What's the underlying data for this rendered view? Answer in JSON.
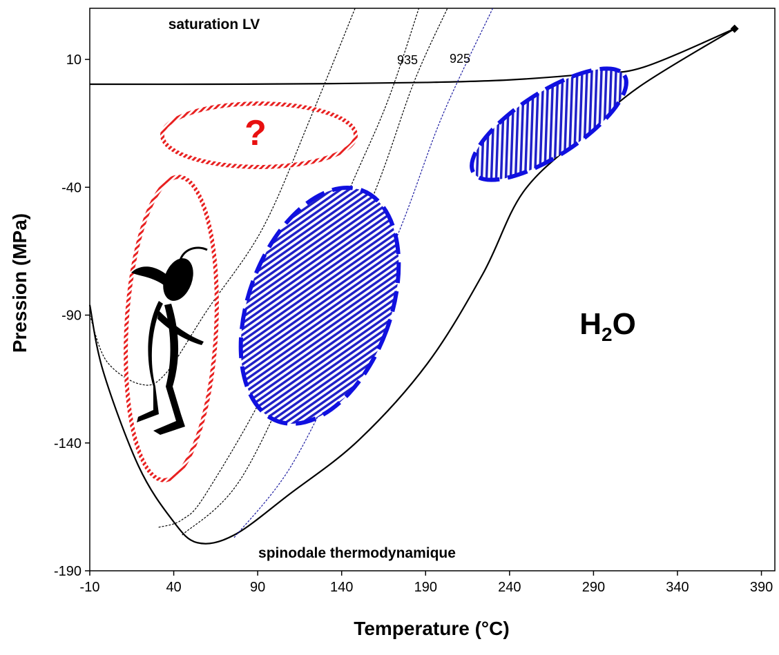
{
  "chart_data": {
    "type": "line",
    "xlabel": "Temperature (°C)",
    "ylabel": "Pression (MPa)",
    "xlim": [
      -10,
      398
    ],
    "ylim": [
      -190,
      30
    ],
    "xticks": [
      -10,
      40,
      90,
      140,
      190,
      240,
      290,
      340,
      390
    ],
    "yticks": [
      -190,
      -140,
      -90,
      -40,
      10
    ],
    "series": [
      {
        "color": "#000000",
        "style": "solid",
        "end_marker": "diamond",
        "x": [
          -10,
          60,
          130,
          190,
          240,
          290,
          320,
          374
        ],
        "values": [
          0.3,
          0.3,
          0.5,
          1,
          2,
          4.5,
          7,
          22
        ]
      },
      {
        "color": "#000000",
        "style": "solid",
        "x": [
          -10,
          -2,
          19,
          39,
          54,
          76,
          109,
          150,
          191,
          224,
          248,
          282,
          317,
          374
        ],
        "values": [
          -86,
          -112,
          -149,
          -170,
          -179,
          -176,
          -160,
          -139,
          -109,
          -74,
          -42,
          -20.5,
          -0.8,
          22
        ]
      },
      {
        "color": "#000000",
        "style": "dotted",
        "x": [
          -10,
          0,
          20,
          35,
          60,
          93,
          122,
          148
        ],
        "values": [
          -90,
          -108,
          -117,
          -113,
          -88,
          -56,
          -12,
          30
        ]
      },
      {
        "color": "#000000",
        "style": "dotted",
        "x": [
          31,
          45,
          60,
          101,
          142,
          167,
          186
        ],
        "values": [
          -173,
          -170,
          -159,
          -111,
          -45,
          -7,
          30
        ]
      },
      {
        "color": "#000000",
        "style": "dotted",
        "x": [
          45,
          80,
          122,
          159,
          183,
          203
        ],
        "values": [
          -176,
          -154,
          -97,
          -43,
          1,
          30
        ]
      },
      {
        "color": "#1a1aa0",
        "style": "dotted",
        "x": [
          76,
          109,
          142,
          175,
          200,
          230
        ],
        "values": [
          -177,
          -150,
          -107,
          -56,
          -12,
          30
        ]
      }
    ],
    "annotations": {
      "saturation": "saturation LV",
      "spinodal": "spinodale thermodynamique",
      "iso_935": "935",
      "iso_925": "925",
      "question": "?",
      "h2o_base": "H",
      "h2o_sub": "2",
      "h2o_tail": "O"
    }
  }
}
